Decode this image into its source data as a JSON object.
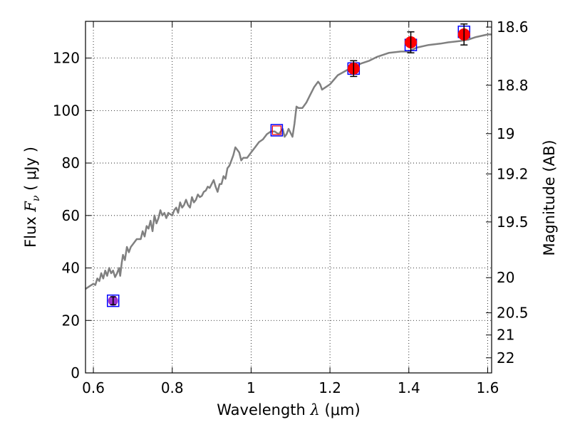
{
  "chart_data": {
    "type": "scatter",
    "xlabel": {
      "text": "Wavelength  ",
      "math": "λ",
      "unit": " (μm)"
    },
    "ylabel": {
      "text": "Flux  ",
      "math": "F",
      "sub": "ν",
      "unit": "  ( μJy )"
    },
    "y2label": "Magnitude (AB)",
    "xlim": [
      0.58,
      1.61
    ],
    "ylim": [
      0,
      134
    ],
    "grid": true,
    "xticks": [
      {
        "v": 0.6,
        "label": "0.6"
      },
      {
        "v": 0.8,
        "label": "0.8"
      },
      {
        "v": 1.0,
        "label": "1"
      },
      {
        "v": 1.2,
        "label": "1.2"
      },
      {
        "v": 1.4,
        "label": "1.4"
      },
      {
        "v": 1.6,
        "label": "1.6"
      }
    ],
    "yticks": [
      {
        "v": 0,
        "label": "0"
      },
      {
        "v": 20,
        "label": "20"
      },
      {
        "v": 40,
        "label": "40"
      },
      {
        "v": 60,
        "label": "60"
      },
      {
        "v": 80,
        "label": "80"
      },
      {
        "v": 100,
        "label": "100"
      },
      {
        "v": 120,
        "label": "120"
      }
    ],
    "magticks": [
      {
        "label": "18.6",
        "mag": 18.6
      },
      {
        "label": "18.8",
        "mag": 18.8
      },
      {
        "label": "19",
        "mag": 19.0
      },
      {
        "label": "19.2",
        "mag": 19.2
      },
      {
        "label": "19.5",
        "mag": 19.5
      },
      {
        "label": "20",
        "mag": 20.0
      },
      {
        "label": "20.5",
        "mag": 20.5
      },
      {
        "label": "21",
        "mag": 21.0
      },
      {
        "label": "22",
        "mag": 22.0
      }
    ],
    "model_color": "#808080",
    "model_spectrum": [
      [
        0.58,
        32
      ],
      [
        0.59,
        33
      ],
      [
        0.6,
        34
      ],
      [
        0.605,
        33.5
      ],
      [
        0.61,
        36
      ],
      [
        0.615,
        35
      ],
      [
        0.62,
        38
      ],
      [
        0.625,
        36
      ],
      [
        0.63,
        39
      ],
      [
        0.635,
        37
      ],
      [
        0.64,
        40
      ],
      [
        0.645,
        38
      ],
      [
        0.65,
        39
      ],
      [
        0.655,
        36.5
      ],
      [
        0.66,
        38
      ],
      [
        0.665,
        40
      ],
      [
        0.668,
        37
      ],
      [
        0.672,
        42
      ],
      [
        0.675,
        45
      ],
      [
        0.68,
        43
      ],
      [
        0.685,
        48
      ],
      [
        0.69,
        46
      ],
      [
        0.695,
        48
      ],
      [
        0.7,
        49
      ],
      [
        0.71,
        51
      ],
      [
        0.72,
        51
      ],
      [
        0.725,
        54
      ],
      [
        0.73,
        52
      ],
      [
        0.735,
        56
      ],
      [
        0.74,
        55
      ],
      [
        0.745,
        58
      ],
      [
        0.75,
        54
      ],
      [
        0.755,
        60
      ],
      [
        0.76,
        57
      ],
      [
        0.765,
        59
      ],
      [
        0.77,
        62
      ],
      [
        0.775,
        60
      ],
      [
        0.78,
        61
      ],
      [
        0.785,
        59
      ],
      [
        0.79,
        61
      ],
      [
        0.8,
        60
      ],
      [
        0.805,
        62
      ],
      [
        0.81,
        63
      ],
      [
        0.815,
        61
      ],
      [
        0.82,
        65
      ],
      [
        0.825,
        63
      ],
      [
        0.83,
        64
      ],
      [
        0.835,
        66
      ],
      [
        0.84,
        64
      ],
      [
        0.845,
        63
      ],
      [
        0.85,
        67
      ],
      [
        0.855,
        65
      ],
      [
        0.86,
        66
      ],
      [
        0.865,
        68
      ],
      [
        0.87,
        67
      ],
      [
        0.875,
        67.5
      ],
      [
        0.88,
        69
      ],
      [
        0.885,
        69.5
      ],
      [
        0.89,
        71
      ],
      [
        0.895,
        70.5
      ],
      [
        0.9,
        72
      ],
      [
        0.905,
        73.5
      ],
      [
        0.91,
        71
      ],
      [
        0.915,
        69
      ],
      [
        0.92,
        72
      ],
      [
        0.925,
        72
      ],
      [
        0.93,
        75
      ],
      [
        0.935,
        74
      ],
      [
        0.94,
        78
      ],
      [
        0.945,
        79
      ],
      [
        0.95,
        81
      ],
      [
        0.955,
        83
      ],
      [
        0.96,
        86
      ],
      [
        0.965,
        85
      ],
      [
        0.97,
        84
      ],
      [
        0.975,
        81
      ],
      [
        0.98,
        82
      ],
      [
        0.99,
        82
      ],
      [
        1.0,
        84
      ],
      [
        1.01,
        86
      ],
      [
        1.02,
        88
      ],
      [
        1.03,
        89
      ],
      [
        1.04,
        91
      ],
      [
        1.05,
        92
      ],
      [
        1.06,
        92
      ],
      [
        1.07,
        91
      ],
      [
        1.075,
        92
      ],
      [
        1.08,
        93
      ],
      [
        1.085,
        90
      ],
      [
        1.09,
        91
      ],
      [
        1.095,
        93
      ],
      [
        1.1,
        91.5
      ],
      [
        1.105,
        90
      ],
      [
        1.11,
        95
      ],
      [
        1.115,
        101.5
      ],
      [
        1.12,
        101
      ],
      [
        1.13,
        101
      ],
      [
        1.14,
        103
      ],
      [
        1.15,
        106
      ],
      [
        1.16,
        109
      ],
      [
        1.17,
        111
      ],
      [
        1.175,
        110
      ],
      [
        1.18,
        108
      ],
      [
        1.19,
        109
      ],
      [
        1.2,
        110
      ],
      [
        1.22,
        113.5
      ],
      [
        1.25,
        116
      ],
      [
        1.28,
        118
      ],
      [
        1.3,
        119
      ],
      [
        1.32,
        120.5
      ],
      [
        1.35,
        122
      ],
      [
        1.38,
        122.5
      ],
      [
        1.4,
        122.5
      ],
      [
        1.42,
        124
      ],
      [
        1.45,
        125
      ],
      [
        1.48,
        125.5
      ],
      [
        1.5,
        126
      ],
      [
        1.53,
        126.5
      ],
      [
        1.55,
        127
      ],
      [
        1.57,
        128
      ],
      [
        1.6,
        129
      ],
      [
        1.61,
        129
      ]
    ],
    "measured": {
      "color": "#ff0000",
      "points": [
        {
          "x": 1.26,
          "y": 116,
          "err": 3
        },
        {
          "x": 1.405,
          "y": 126,
          "err": 4
        },
        {
          "x": 1.54,
          "y": 129,
          "err": 4
        }
      ]
    },
    "synthetic": {
      "color": "#0000ff",
      "points": [
        {
          "x": 0.65,
          "y": 27.5
        },
        {
          "x": 1.065,
          "y": 92.5
        },
        {
          "x": 1.26,
          "y": 116
        },
        {
          "x": 1.405,
          "y": 125
        },
        {
          "x": 1.54,
          "y": 130
        }
      ]
    },
    "special_points": [
      {
        "x": 0.65,
        "y": 27.5,
        "err": 1.5,
        "color": "#9932cc",
        "shape": "circle"
      },
      {
        "x": 1.065,
        "y": 92.5,
        "color": "#ff0000",
        "shape": "small-square"
      }
    ]
  }
}
